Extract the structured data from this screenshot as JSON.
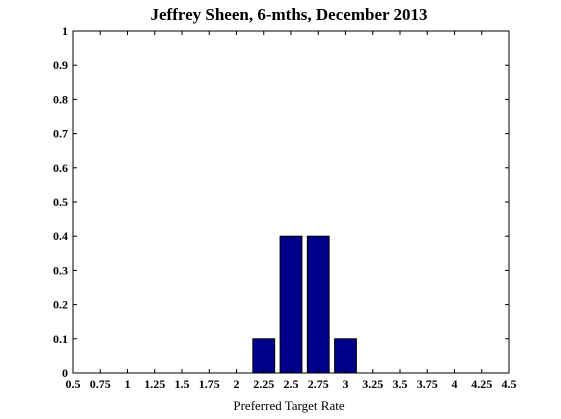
{
  "chart_data": {
    "type": "bar",
    "title": "Jeffrey Sheen, 6-mths, December 2013",
    "xlabel": "Preferred Target Rate",
    "ylabel": "",
    "xlim": [
      0.5,
      4.5
    ],
    "ylim": [
      0,
      1
    ],
    "x_ticks": [
      0.5,
      0.75,
      1,
      1.25,
      1.5,
      1.75,
      2,
      2.25,
      2.5,
      2.75,
      3,
      3.25,
      3.5,
      3.75,
      4,
      4.25,
      4.5
    ],
    "x_tick_labels": [
      "0.5",
      "0.75",
      "1",
      "1.25",
      "1.5",
      "1.75",
      "2",
      "2.25",
      "2.5",
      "2.75",
      "3",
      "3.25",
      "3.5",
      "3.75",
      "4",
      "4.25",
      "4.5"
    ],
    "y_ticks": [
      0,
      0.1,
      0.2,
      0.3,
      0.4,
      0.5,
      0.6,
      0.7,
      0.8,
      0.9,
      1
    ],
    "y_tick_labels": [
      "0",
      "0.1",
      "0.2",
      "0.3",
      "0.4",
      "0.5",
      "0.6",
      "0.7",
      "0.8",
      "0.9",
      "1"
    ],
    "bar_width": 0.2,
    "x": [
      2.25,
      2.5,
      2.75,
      3
    ],
    "values": [
      0.1,
      0.4,
      0.4,
      0.1
    ],
    "bar_color": "#00008b",
    "grid": false
  }
}
